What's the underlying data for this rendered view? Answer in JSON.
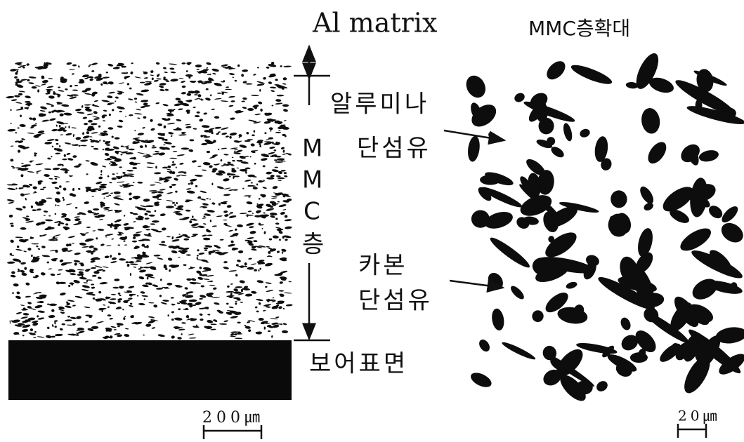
{
  "header": {
    "left": "Al matrix",
    "right": "MMC층확대"
  },
  "labels": {
    "alumina": [
      "알루미나",
      "단섬유"
    ],
    "layer": [
      "M",
      "M",
      "C",
      "층"
    ],
    "carbon": [
      "카본",
      "단섬유"
    ],
    "bore": "보어표면"
  },
  "scale_bars": {
    "left": "200㎛",
    "right": "20㎛"
  }
}
